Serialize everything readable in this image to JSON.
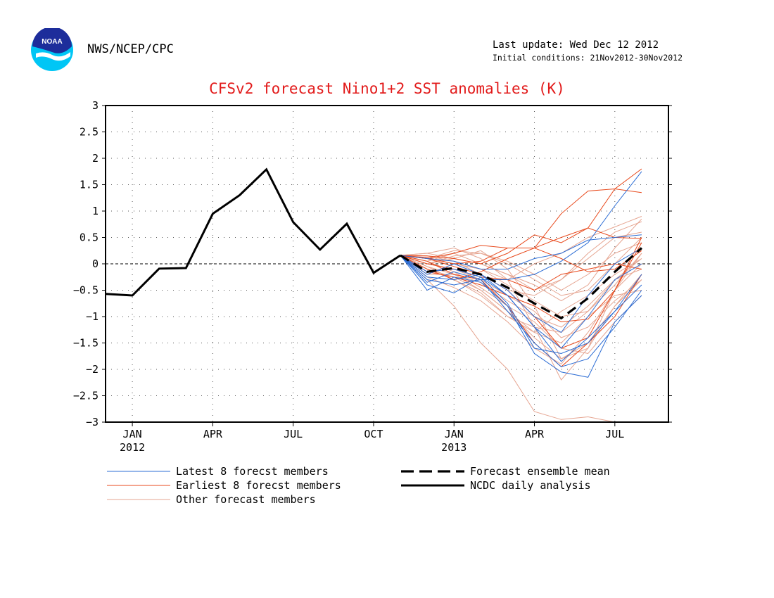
{
  "header": {
    "org": "NWS/NCEP/CPC",
    "last_update": "Last update: Wed Dec 12 2012",
    "initial_conditions": "Initial conditions: 21Nov2012-30Nov2012",
    "logo_text": "NOAA"
  },
  "colors": {
    "latest": "#2b6cd4",
    "earliest": "#e8491c",
    "other": "#e6a591",
    "mean": "#000000",
    "analysis": "#000000",
    "title": "#e21b1b"
  },
  "chart_data": {
    "type": "line",
    "title": "CFSv2 forecast Nino1+2 SST anomalies (K)",
    "xlabel": "",
    "ylabel": "",
    "ylim": [
      -3,
      3
    ],
    "yticks": [
      3,
      2.5,
      2,
      1.5,
      1,
      0.5,
      0,
      -0.5,
      -1,
      -1.5,
      -2,
      -2.5,
      -3
    ],
    "ytick_labels": [
      "3",
      "2.5",
      "2",
      "1.5",
      "1",
      "0.5",
      "0",
      "−0.5",
      "−1",
      "−1.5",
      "−2",
      "−2.5",
      "−3"
    ],
    "xlim": [
      "2011-12",
      "2013-09"
    ],
    "xticks": [
      {
        "month": "2012-01",
        "label": "JAN",
        "year": "2012"
      },
      {
        "month": "2012-04",
        "label": "APR",
        "year": ""
      },
      {
        "month": "2012-07",
        "label": "JUL",
        "year": ""
      },
      {
        "month": "2012-10",
        "label": "OCT",
        "year": ""
      },
      {
        "month": "2013-01",
        "label": "JAN",
        "year": "2013"
      },
      {
        "month": "2013-04",
        "label": "APR",
        "year": ""
      },
      {
        "month": "2013-07",
        "label": "JUL",
        "year": ""
      }
    ],
    "grid": true,
    "legend_position": "bottom",
    "legend": [
      {
        "label": "Latest 8 forecst members",
        "style": "latest"
      },
      {
        "label": "Forecast ensemble mean",
        "style": "mean"
      },
      {
        "label": "Earliest 8 forecst members",
        "style": "earliest"
      },
      {
        "label": "NCDC daily analysis",
        "style": "analysis"
      },
      {
        "label": "Other forecast members",
        "style": "other"
      }
    ],
    "forecast_months": [
      "2012-11",
      "2012-12",
      "2013-01",
      "2013-02",
      "2013-03",
      "2013-04",
      "2013-05",
      "2013-06",
      "2013-07",
      "2013-08"
    ],
    "series": [
      {
        "name": "NCDC daily analysis",
        "style": "analysis",
        "x": [
          "2011-12",
          "2012-01",
          "2012-02",
          "2012-03",
          "2012-04",
          "2012-05",
          "2012-06",
          "2012-07",
          "2012-08",
          "2012-09",
          "2012-10",
          "2012-11"
        ],
        "values": [
          -0.57,
          -0.6,
          -0.09,
          -0.08,
          0.95,
          1.3,
          1.79,
          0.79,
          0.27,
          0.76,
          -0.17,
          0.16
        ]
      },
      {
        "name": "Forecast ensemble mean",
        "style": "mean",
        "values": [
          0.16,
          -0.15,
          -0.08,
          -0.2,
          -0.45,
          -0.75,
          -1.03,
          -0.65,
          -0.15,
          0.3
        ]
      },
      {
        "style": "latest",
        "values": [
          0.16,
          -0.5,
          -0.25,
          -0.35,
          -0.8,
          -1.7,
          -2.05,
          -2.15,
          -1.1,
          -0.6
        ]
      },
      {
        "style": "latest",
        "values": [
          0.16,
          -0.35,
          -0.15,
          -0.3,
          -0.9,
          -1.5,
          -1.95,
          -1.8,
          -1.2,
          -0.5
        ]
      },
      {
        "style": "latest",
        "values": [
          0.16,
          -0.2,
          0.0,
          -0.2,
          -0.6,
          -1.2,
          -1.6,
          -1.0,
          -0.3,
          0.0
        ]
      },
      {
        "style": "latest",
        "values": [
          0.16,
          -0.3,
          -0.4,
          -0.3,
          -0.3,
          -0.2,
          0.05,
          0.4,
          1.1,
          1.75
        ]
      },
      {
        "style": "latest",
        "values": [
          0.16,
          0.1,
          0.05,
          -0.1,
          -0.1,
          0.1,
          0.2,
          0.45,
          0.5,
          0.55
        ]
      },
      {
        "style": "latest",
        "values": [
          0.16,
          -0.25,
          -0.3,
          -0.2,
          -0.5,
          -1.0,
          -1.3,
          -0.6,
          0.0,
          0.3
        ]
      },
      {
        "style": "latest",
        "values": [
          0.16,
          -0.4,
          -0.55,
          -0.25,
          -0.6,
          -1.2,
          -1.85,
          -1.4,
          -0.9,
          -0.4
        ]
      },
      {
        "style": "latest",
        "values": [
          0.16,
          -0.15,
          -0.1,
          -0.25,
          -0.75,
          -1.6,
          -1.7,
          -1.5,
          -0.9,
          -0.2
        ]
      },
      {
        "style": "earliest",
        "values": [
          0.16,
          0.1,
          0.2,
          0.35,
          0.3,
          0.3,
          0.95,
          1.38,
          1.42,
          1.35
        ]
      },
      {
        "style": "earliest",
        "values": [
          0.16,
          0.15,
          0.1,
          0.0,
          0.2,
          0.55,
          0.4,
          0.68,
          1.42,
          1.8
        ]
      },
      {
        "style": "earliest",
        "values": [
          0.16,
          0.12,
          0.0,
          0.05,
          0.3,
          0.3,
          0.5,
          0.68,
          0.5,
          0.48
        ]
      },
      {
        "style": "earliest",
        "values": [
          0.16,
          -0.15,
          -0.25,
          -0.4,
          -0.6,
          -0.8,
          -1.1,
          -1.05,
          -0.5,
          0.5
        ]
      },
      {
        "style": "earliest",
        "values": [
          0.16,
          0.05,
          -0.2,
          -0.3,
          -0.8,
          -1.5,
          -1.95,
          -1.5,
          -1.0,
          -0.2
        ]
      },
      {
        "style": "earliest",
        "values": [
          0.16,
          0.0,
          -0.1,
          -0.25,
          -0.3,
          -0.5,
          -0.2,
          -0.1,
          0.0,
          -0.1
        ]
      },
      {
        "style": "earliest",
        "values": [
          0.16,
          0.1,
          -0.05,
          -0.2,
          -0.5,
          -1.0,
          -1.6,
          -1.4,
          -0.5,
          0.4
        ]
      },
      {
        "style": "earliest",
        "values": [
          0.16,
          -0.1,
          -0.3,
          -0.15,
          0.1,
          0.3,
          0.1,
          -0.15,
          -0.1,
          0.25
        ]
      },
      {
        "style": "other",
        "values": [
          0.16,
          0.2,
          0.3,
          0.1,
          -0.3,
          -1.2,
          -2.2,
          -1.6,
          -0.8,
          -0.3
        ]
      },
      {
        "style": "other",
        "values": [
          0.16,
          -0.3,
          -0.8,
          -1.5,
          -2.0,
          -2.8,
          -2.95,
          -2.9,
          -3.0,
          -3.0
        ]
      },
      {
        "style": "other",
        "values": [
          0.16,
          0.0,
          0.1,
          0.25,
          -0.1,
          -0.8,
          -1.8,
          -1.6,
          -0.5,
          0.2
        ]
      },
      {
        "style": "other",
        "values": [
          0.16,
          -0.1,
          -0.3,
          -0.6,
          -1.0,
          -1.3,
          -1.5,
          -1.0,
          -0.6,
          -0.5
        ]
      },
      {
        "style": "other",
        "values": [
          0.16,
          0.05,
          0.2,
          0.0,
          -0.2,
          -0.4,
          -0.7,
          -0.4,
          0.3,
          0.85
        ]
      },
      {
        "style": "other",
        "values": [
          0.16,
          -0.2,
          -0.2,
          -0.5,
          -0.9,
          -1.3,
          -0.9,
          -0.6,
          -0.2,
          0.1
        ]
      },
      {
        "style": "other",
        "values": [
          0.16,
          0.1,
          0.0,
          -0.1,
          -0.3,
          0.0,
          0.2,
          0.5,
          0.7,
          0.9
        ]
      },
      {
        "style": "other",
        "values": [
          0.16,
          -0.25,
          -0.45,
          -0.7,
          -1.1,
          -1.6,
          -1.9,
          -1.3,
          -0.5,
          0.0
        ]
      },
      {
        "style": "other",
        "values": [
          0.16,
          0.15,
          0.05,
          -0.2,
          -0.5,
          -0.6,
          -0.3,
          0.1,
          0.5,
          0.6
        ]
      },
      {
        "style": "other",
        "values": [
          0.16,
          -0.05,
          -0.2,
          -0.35,
          -0.7,
          -1.0,
          -1.2,
          -0.8,
          -0.3,
          0.1
        ]
      },
      {
        "style": "other",
        "values": [
          0.16,
          0.0,
          0.15,
          0.2,
          0.05,
          -0.2,
          -0.5,
          -0.2,
          0.2,
          0.4
        ]
      },
      {
        "style": "other",
        "values": [
          0.16,
          -0.15,
          -0.1,
          -0.3,
          -0.6,
          -0.9,
          -1.4,
          -1.2,
          -0.7,
          -0.3
        ]
      },
      {
        "style": "other",
        "values": [
          0.16,
          0.05,
          -0.15,
          -0.45,
          -0.8,
          -1.1,
          -1.6,
          -1.7,
          -1.1,
          -0.6
        ]
      },
      {
        "style": "other",
        "values": [
          0.16,
          -0.2,
          0.0,
          -0.1,
          -0.4,
          -0.7,
          -1.0,
          -0.9,
          -0.4,
          0.2
        ]
      },
      {
        "style": "other",
        "values": [
          0.16,
          0.1,
          0.25,
          0.2,
          0.0,
          -0.3,
          -0.6,
          -0.5,
          0.0,
          0.5
        ]
      },
      {
        "style": "other",
        "values": [
          0.16,
          -0.1,
          -0.25,
          -0.5,
          -0.9,
          -1.4,
          -1.8,
          -1.5,
          -0.8,
          -0.2
        ]
      },
      {
        "style": "other",
        "values": [
          0.16,
          0.2,
          0.1,
          0.0,
          -0.2,
          -0.5,
          -0.3,
          0.2,
          0.6,
          0.8
        ]
      },
      {
        "style": "other",
        "values": [
          0.16,
          -0.05,
          -0.3,
          -0.55,
          -1.0,
          -1.2,
          -1.3,
          -0.9,
          -0.3,
          -0.1
        ]
      }
    ]
  }
}
